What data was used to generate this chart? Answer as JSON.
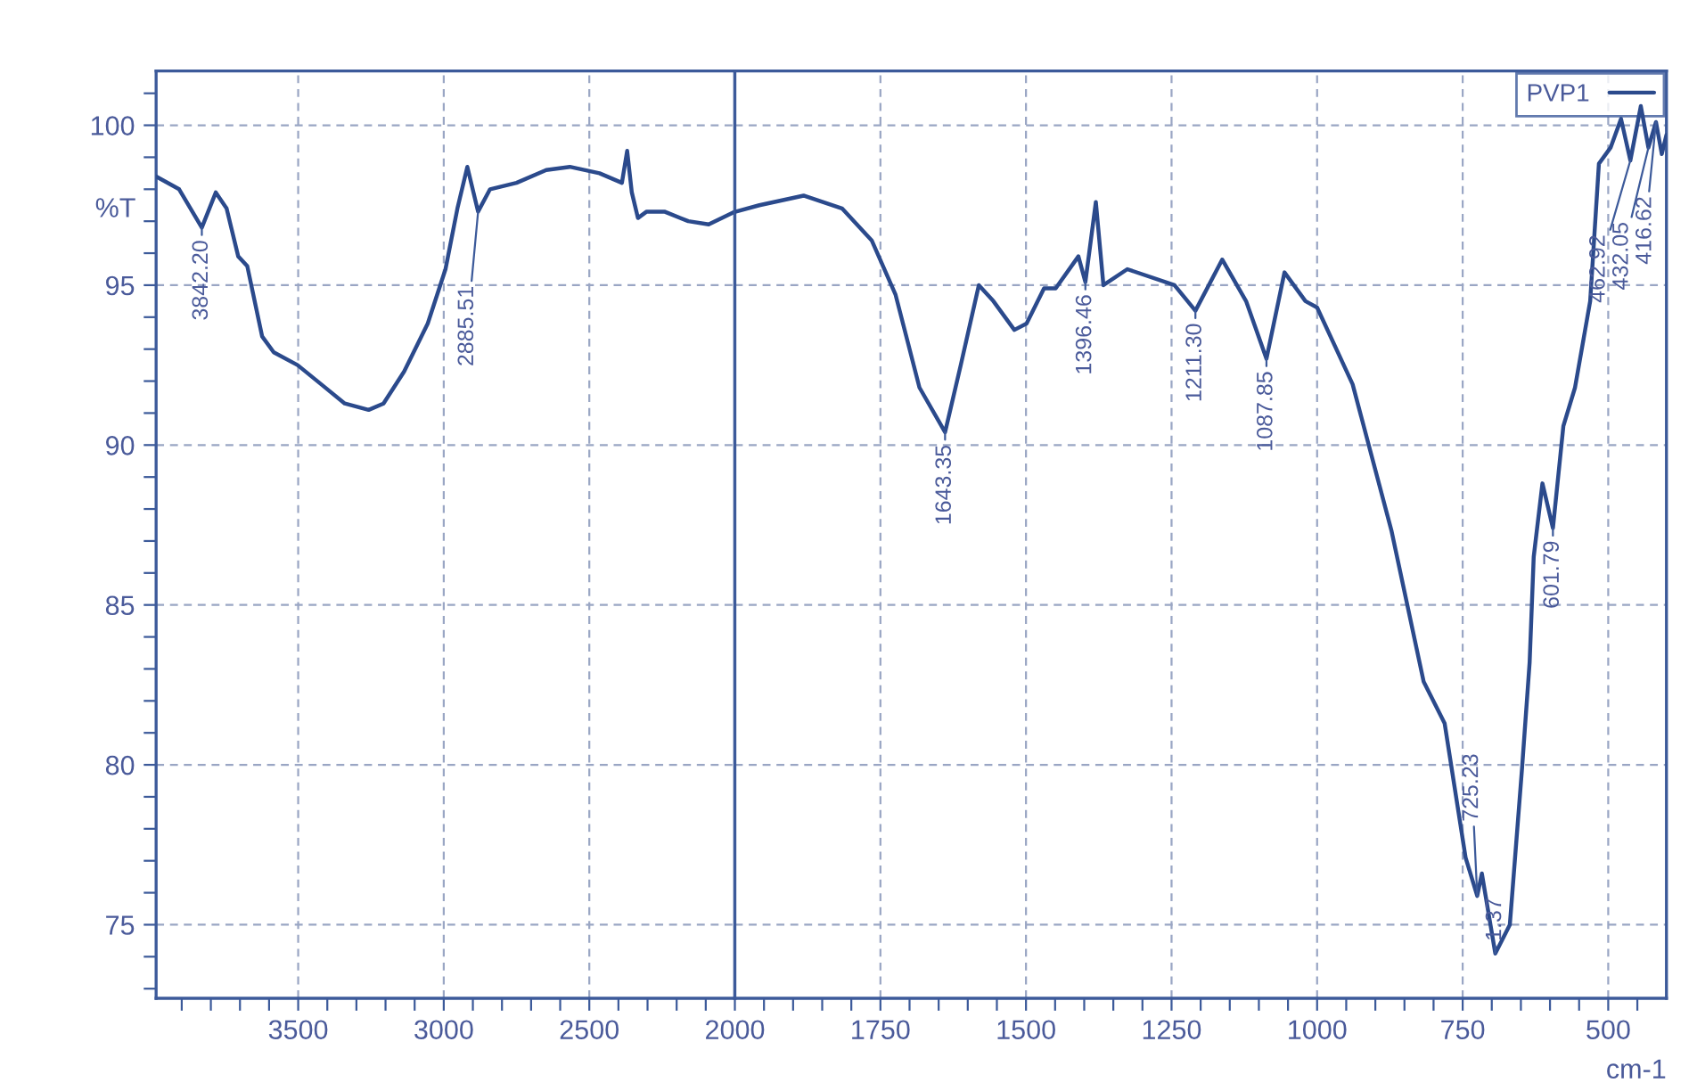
{
  "chart_data": [
    {
      "type": "line",
      "ylabel": "%T",
      "x": [
        3988,
        3909,
        3831,
        3783,
        3746,
        3706,
        3675,
        3624,
        3584,
        3502,
        3421,
        3340,
        3258,
        3207,
        3136,
        3055,
        2994,
        2953,
        2919,
        2882,
        2841,
        2750,
        2648,
        2567,
        2465,
        2388,
        2370,
        2354,
        2333,
        2303,
        2242,
        2160,
        2090,
        2000
      ],
      "series": [
        {
          "color": "#2b4a8c",
          "values": [
            98.4,
            98.0,
            96.8,
            97.9,
            97.4,
            95.9,
            95.6,
            93.4,
            92.9,
            92.5,
            91.9,
            91.3,
            91.1,
            91.3,
            92.3,
            93.8,
            95.5,
            97.4,
            98.7,
            97.3,
            98.0,
            98.2,
            98.6,
            98.7,
            98.5,
            98.2,
            99.2,
            97.9,
            97.1,
            97.3,
            97.3,
            97.0,
            96.9,
            97.3
          ]
        }
      ],
      "xlim": [
        3988,
        2000
      ],
      "ylim": [
        72.7,
        101.7
      ],
      "xticks": [
        3500,
        3000,
        2500,
        {
          "value": 3900,
          "label": null
        },
        {
          "value": 3800,
          "label": null
        },
        {
          "value": 3700,
          "label": null
        },
        {
          "value": 3600,
          "label": null
        },
        {
          "value": 3400,
          "label": null
        },
        {
          "value": 3300,
          "label": null
        },
        {
          "value": 3200,
          "label": null
        },
        {
          "value": 3100,
          "label": null
        },
        {
          "value": 2900,
          "label": null
        },
        {
          "value": 2800,
          "label": null
        },
        {
          "value": 2700,
          "label": null
        },
        {
          "value": 2600,
          "label": null
        },
        {
          "value": 2400,
          "label": null
        },
        {
          "value": 2300,
          "label": null
        },
        {
          "value": 2200,
          "label": null
        },
        {
          "value": 2100,
          "label": null
        }
      ],
      "yticks": [
        75,
        80,
        85,
        90,
        95,
        100,
        {
          "value": 73,
          "label": null
        },
        {
          "value": 74,
          "label": null
        },
        {
          "value": 76,
          "label": null
        },
        {
          "value": 77,
          "label": null
        },
        {
          "value": 78,
          "label": null
        },
        {
          "value": 79,
          "label": null
        },
        {
          "value": 81,
          "label": null
        },
        {
          "value": 82,
          "label": null
        },
        {
          "value": 83,
          "label": null
        },
        {
          "value": 84,
          "label": null
        },
        {
          "value": 86,
          "label": null
        },
        {
          "value": 87,
          "label": null
        },
        {
          "value": 88,
          "label": null
        },
        {
          "value": 89,
          "label": null
        },
        {
          "value": 91,
          "label": null
        },
        {
          "value": 92,
          "label": null
        },
        {
          "value": 93,
          "label": null
        },
        {
          "value": 94,
          "label": null
        },
        {
          "value": 96,
          "label": null
        },
        {
          "value": 97,
          "label": null
        },
        {
          "value": 98,
          "label": null
        },
        {
          "value": 99,
          "label": null
        },
        {
          "value": 101,
          "label": null
        }
      ],
      "grid": true,
      "marker": "none",
      "line_style": "solid",
      "annotations": [
        {
          "text": "3842.20",
          "x": 3831,
          "y": 96.8
        },
        {
          "text": "2885.51",
          "x": 2882,
          "y": 97.3
        }
      ]
    },
    {
      "type": "line",
      "xlabel": "cm-1",
      "x": [
        1998,
        1958,
        1882,
        1816,
        1765,
        1724,
        1683,
        1639,
        1612,
        1581,
        1556,
        1520,
        1499,
        1469,
        1449,
        1410,
        1398,
        1380,
        1367,
        1326,
        1245,
        1209,
        1163,
        1122,
        1087,
        1056,
        1020,
        1000,
        939,
        872,
        817,
        781,
        745,
        725,
        717,
        694,
        669,
        648,
        635,
        628,
        613,
        595,
        577,
        557,
        531,
        516,
        496,
        478,
        462,
        444,
        431,
        418,
        408,
        400
      ],
      "series": [
        {
          "name": "PVP1",
          "color": "#2b4a8c",
          "values": [
            97.3,
            97.5,
            97.8,
            97.4,
            96.4,
            94.7,
            91.8,
            90.4,
            92.5,
            95.0,
            94.5,
            93.6,
            93.8,
            94.9,
            94.9,
            95.9,
            95.1,
            97.6,
            95.0,
            95.5,
            95.0,
            94.2,
            95.8,
            94.5,
            92.7,
            95.4,
            94.5,
            94.3,
            91.9,
            87.3,
            82.6,
            81.3,
            77.1,
            75.9,
            76.6,
            74.1,
            75.0,
            79.9,
            83.2,
            86.5,
            88.8,
            87.4,
            90.6,
            91.8,
            94.5,
            98.8,
            99.3,
            100.2,
            98.9,
            100.6,
            99.3,
            100.1,
            99.1,
            99.7
          ]
        }
      ],
      "xlim": [
        2000,
        400
      ],
      "ylim": [
        72.7,
        101.7
      ],
      "tick_labels": "x",
      "xticks": [
        2000,
        1750,
        1500,
        1250,
        1000,
        750,
        500,
        {
          "value": 1950,
          "label": null
        },
        {
          "value": 1900,
          "label": null
        },
        {
          "value": 1850,
          "label": null
        },
        {
          "value": 1800,
          "label": null
        },
        {
          "value": 1700,
          "label": null
        },
        {
          "value": 1650,
          "label": null
        },
        {
          "value": 1600,
          "label": null
        },
        {
          "value": 1550,
          "label": null
        },
        {
          "value": 1450,
          "label": null
        },
        {
          "value": 1400,
          "label": null
        },
        {
          "value": 1350,
          "label": null
        },
        {
          "value": 1300,
          "label": null
        },
        {
          "value": 1200,
          "label": null
        },
        {
          "value": 1150,
          "label": null
        },
        {
          "value": 1100,
          "label": null
        },
        {
          "value": 1050,
          "label": null
        },
        {
          "value": 950,
          "label": null
        },
        {
          "value": 900,
          "label": null
        },
        {
          "value": 850,
          "label": null
        },
        {
          "value": 800,
          "label": null
        },
        {
          "value": 700,
          "label": null
        },
        {
          "value": 650,
          "label": null
        },
        {
          "value": 600,
          "label": null
        },
        {
          "value": 550,
          "label": null
        },
        {
          "value": 450,
          "label": null
        }
      ],
      "yticks": [
        75,
        80,
        85,
        90,
        95,
        100
      ],
      "grid": true,
      "legend": "top right",
      "marker": "none",
      "line_style": "solid",
      "annotations": [
        {
          "text": "1643.35",
          "x": 1639,
          "y": 90.4
        },
        {
          "text": "1396.46",
          "x": 1398,
          "y": 95.1
        },
        {
          "text": "1211.30",
          "x": 1209,
          "y": 94.2
        },
        {
          "text": "1087.85",
          "x": 1087,
          "y": 92.7
        },
        {
          "text": "725.23",
          "x": 725,
          "y": 75.9
        },
        {
          "text": "1.37",
          "x": 694,
          "y": 74.1
        },
        {
          "text": "601.79",
          "x": 595,
          "y": 87.4
        },
        {
          "text": "462.92",
          "x": 462,
          "y": 98.9
        },
        {
          "text": "432.05",
          "x": 431,
          "y": 99.3
        },
        {
          "text": "416.62",
          "x": 418,
          "y": 100.1
        }
      ]
    }
  ]
}
